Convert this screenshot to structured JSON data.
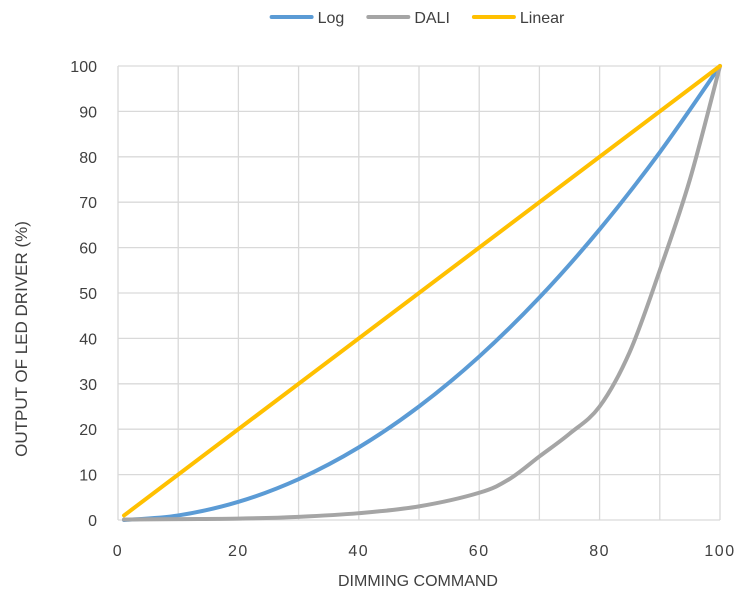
{
  "chart_data": {
    "type": "line",
    "title": "",
    "xlabel": "DIMMING COMMAND",
    "ylabel": "OUTPUT OF LED DRIVER (%)",
    "xlim": [
      0,
      100
    ],
    "ylim": [
      0,
      100
    ],
    "xticks": [
      0,
      20,
      40,
      60,
      80,
      100
    ],
    "yticks": [
      0,
      10,
      20,
      30,
      40,
      50,
      60,
      70,
      80,
      90,
      100
    ],
    "x_grid_step": 10,
    "grid": true,
    "legend_position": "top",
    "series": [
      {
        "name": "Log",
        "color": "#5B9BD5",
        "x": [
          1,
          10,
          20,
          30,
          40,
          50,
          60,
          70,
          80,
          90,
          100
        ],
        "y": [
          0,
          1,
          4,
          9,
          16,
          25,
          36,
          49,
          64,
          81,
          100
        ]
      },
      {
        "name": "DALI",
        "color": "#A5A5A5",
        "x": [
          1,
          10,
          20,
          30,
          40,
          50,
          60,
          65,
          70,
          75,
          80,
          85,
          90,
          95,
          100
        ],
        "y": [
          0.1,
          0.2,
          0.3,
          0.7,
          1.5,
          3,
          6,
          9,
          14,
          19,
          25,
          37,
          55,
          75,
          100
        ]
      },
      {
        "name": "Linear",
        "color": "#FFC000",
        "x": [
          1,
          100
        ],
        "y": [
          1,
          100
        ]
      }
    ]
  }
}
